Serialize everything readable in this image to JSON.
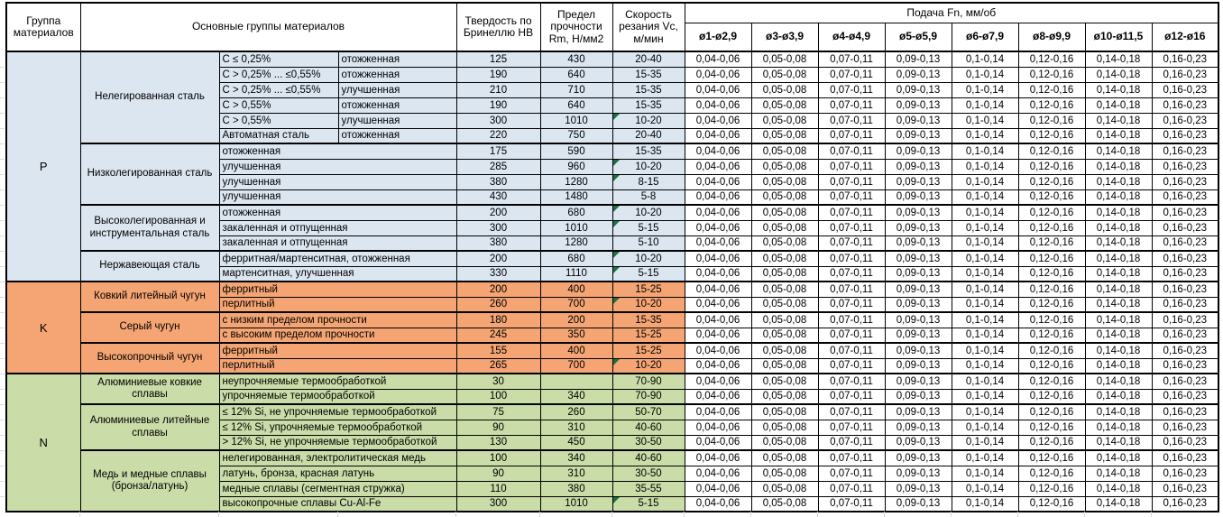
{
  "header": {
    "group_col": "Группа материалов",
    "materials_col": "Основные группы материалов",
    "hardness_col": "Твердость по Бринеллю HB",
    "strength_col": "Предел прочности Rm, Н/мм2",
    "speed_col": "Скорость резания Vc, м/мин",
    "feed_title": "Подача Fn, мм/об",
    "feed_cols": [
      "ø1-ø2,9",
      "ø3-ø3,9",
      "ø4-ø4,9",
      "ø5-ø5,9",
      "ø6-ø7,9",
      "ø8-ø9,9",
      "ø10-ø11,5",
      "ø12-ø16"
    ]
  },
  "colors": {
    "p_group": "#DCE6F1",
    "k_group": "#F4A573",
    "n_group": "#CADCA8",
    "indicator_triangle": "#1E7145",
    "border": "#000000",
    "header_bg": "#FFFFFF"
  },
  "feed_values": [
    "0,04-0,06",
    "0,05-0,08",
    "0,07-0,11",
    "0,09-0,13",
    "0,1-0,14",
    "0,12-0,16",
    "0,14-0,18",
    "0,16-0,23"
  ],
  "groups": [
    {
      "letter": "P",
      "color_key": "p_group",
      "subgroups": [
        {
          "name": "Нелегированная сталь",
          "split": true,
          "rows": [
            {
              "sub1": "C ≤ 0,25%",
              "sub2": "отожженная",
              "hb": "125",
              "rm": "430",
              "vc": "20-40",
              "indicator": false
            },
            {
              "sub1": "C > 0,25% ... ≤0,55%",
              "sub2": "отожженная",
              "hb": "190",
              "rm": "640",
              "vc": "15-35",
              "indicator": false
            },
            {
              "sub1": "C > 0,25% ... ≤0,55%",
              "sub2": "улучшенная",
              "hb": "210",
              "rm": "710",
              "vc": "15-35",
              "indicator": false
            },
            {
              "sub1": "C > 0,55%",
              "sub2": "отожженная",
              "hb": "190",
              "rm": "640",
              "vc": "15-35",
              "indicator": false
            },
            {
              "sub1": "C > 0,55%",
              "sub2": "улучшенная",
              "hb": "300",
              "rm": "1010",
              "vc": "10-20",
              "indicator": true
            },
            {
              "sub1": "Автоматная сталь",
              "sub2": "отожженная",
              "hb": "220",
              "rm": "750",
              "vc": "20-40",
              "indicator": false
            }
          ]
        },
        {
          "name": "Низколегированная сталь",
          "split": false,
          "rows": [
            {
              "label": "отожженная",
              "hb": "175",
              "rm": "590",
              "vc": "15-35",
              "indicator": false
            },
            {
              "label": "улучшенная",
              "hb": "285",
              "rm": "960",
              "vc": "10-20",
              "indicator": true
            },
            {
              "label": "улучшенная",
              "hb": "380",
              "rm": "1280",
              "vc": "8-15",
              "indicator": true
            },
            {
              "label": "улучшенная",
              "hb": "430",
              "rm": "1480",
              "vc": "5-8",
              "indicator": false
            }
          ]
        },
        {
          "name": "Высоколегированная и инструментальная сталь",
          "split": false,
          "rows": [
            {
              "label": "отожженная",
              "hb": "200",
              "rm": "680",
              "vc": "10-20",
              "indicator": true
            },
            {
              "label": "закаленная и отпущенная",
              "hb": "300",
              "rm": "1010",
              "vc": "5-15",
              "indicator": true
            },
            {
              "label": "закаленная и отпущенная",
              "hb": "380",
              "rm": "1280",
              "vc": "5-10",
              "indicator": false
            }
          ]
        },
        {
          "name": "Нержавеющая сталь",
          "split": false,
          "rows": [
            {
              "label": "ферритная/мартенситная, отожженная",
              "hb": "200",
              "rm": "680",
              "vc": "10-20",
              "indicator": true
            },
            {
              "label": "мартенситная, улучшенная",
              "hb": "330",
              "rm": "1110",
              "vc": "5-15",
              "indicator": true
            }
          ]
        }
      ]
    },
    {
      "letter": "K",
      "color_key": "k_group",
      "subgroups": [
        {
          "name": "Ковкий литейный чугун",
          "split": false,
          "rows": [
            {
              "label": "ферритный",
              "hb": "200",
              "rm": "400",
              "vc": "15-25",
              "indicator": false
            },
            {
              "label": "перлитный",
              "hb": "260",
              "rm": "700",
              "vc": "10-20",
              "indicator": true
            }
          ]
        },
        {
          "name": "Серый чугун",
          "split": false,
          "rows": [
            {
              "label": "с низким пределом прочности",
              "hb": "180",
              "rm": "200",
              "vc": "15-35",
              "indicator": false
            },
            {
              "label": "с высоким пределом прочности",
              "hb": "245",
              "rm": "350",
              "vc": "15-25",
              "indicator": false
            }
          ]
        },
        {
          "name": "Высокопрочный чугун",
          "split": false,
          "rows": [
            {
              "label": "ферритный",
              "hb": "155",
              "rm": "400",
              "vc": "15-25",
              "indicator": false
            },
            {
              "label": "перлитный",
              "hb": "265",
              "rm": "700",
              "vc": "10-20",
              "indicator": true
            }
          ]
        }
      ]
    },
    {
      "letter": "N",
      "color_key": "n_group",
      "subgroups": [
        {
          "name": "Алюминиевые ковкие сплавы",
          "split": false,
          "rows": [
            {
              "label": "неупрочняемые термообработкой",
              "hb": "30",
              "rm": "",
              "vc": "70-90",
              "indicator": false
            },
            {
              "label": "упрочняемые термообработкой",
              "hb": "100",
              "rm": "340",
              "vc": "70-90",
              "indicator": false
            }
          ]
        },
        {
          "name": "Алюминиевые литейные сплавы",
          "split": false,
          "rows": [
            {
              "label": "≤ 12% Si, не упрочняемые термообработкой",
              "hb": "75",
              "rm": "260",
              "vc": "50-70",
              "indicator": false
            },
            {
              "label": "≤ 12% Si, упрочняемые термообработкой",
              "hb": "90",
              "rm": "310",
              "vc": "40-60",
              "indicator": false
            },
            {
              "label": "> 12% Si, не упрочняемые термообработкой",
              "hb": "130",
              "rm": "450",
              "vc": "30-50",
              "indicator": false
            }
          ]
        },
        {
          "name": "Медь и медные сплавы (бронза/латунь)",
          "split": false,
          "rows": [
            {
              "label": "нелегированная, электролитическая медь",
              "hb": "100",
              "rm": "340",
              "vc": "40-60",
              "indicator": false
            },
            {
              "label": "латунь, бронза, красная латунь",
              "hb": "90",
              "rm": "310",
              "vc": "30-50",
              "indicator": false
            },
            {
              "label": "медные сплавы (сегментная стружка)",
              "hb": "110",
              "rm": "380",
              "vc": "35-55",
              "indicator": false
            },
            {
              "label": "высокопрочные сплавы Cu-Al-Fe",
              "hb": "300",
              "rm": "1010",
              "vc": "5-15",
              "indicator": true
            }
          ]
        }
      ]
    }
  ]
}
